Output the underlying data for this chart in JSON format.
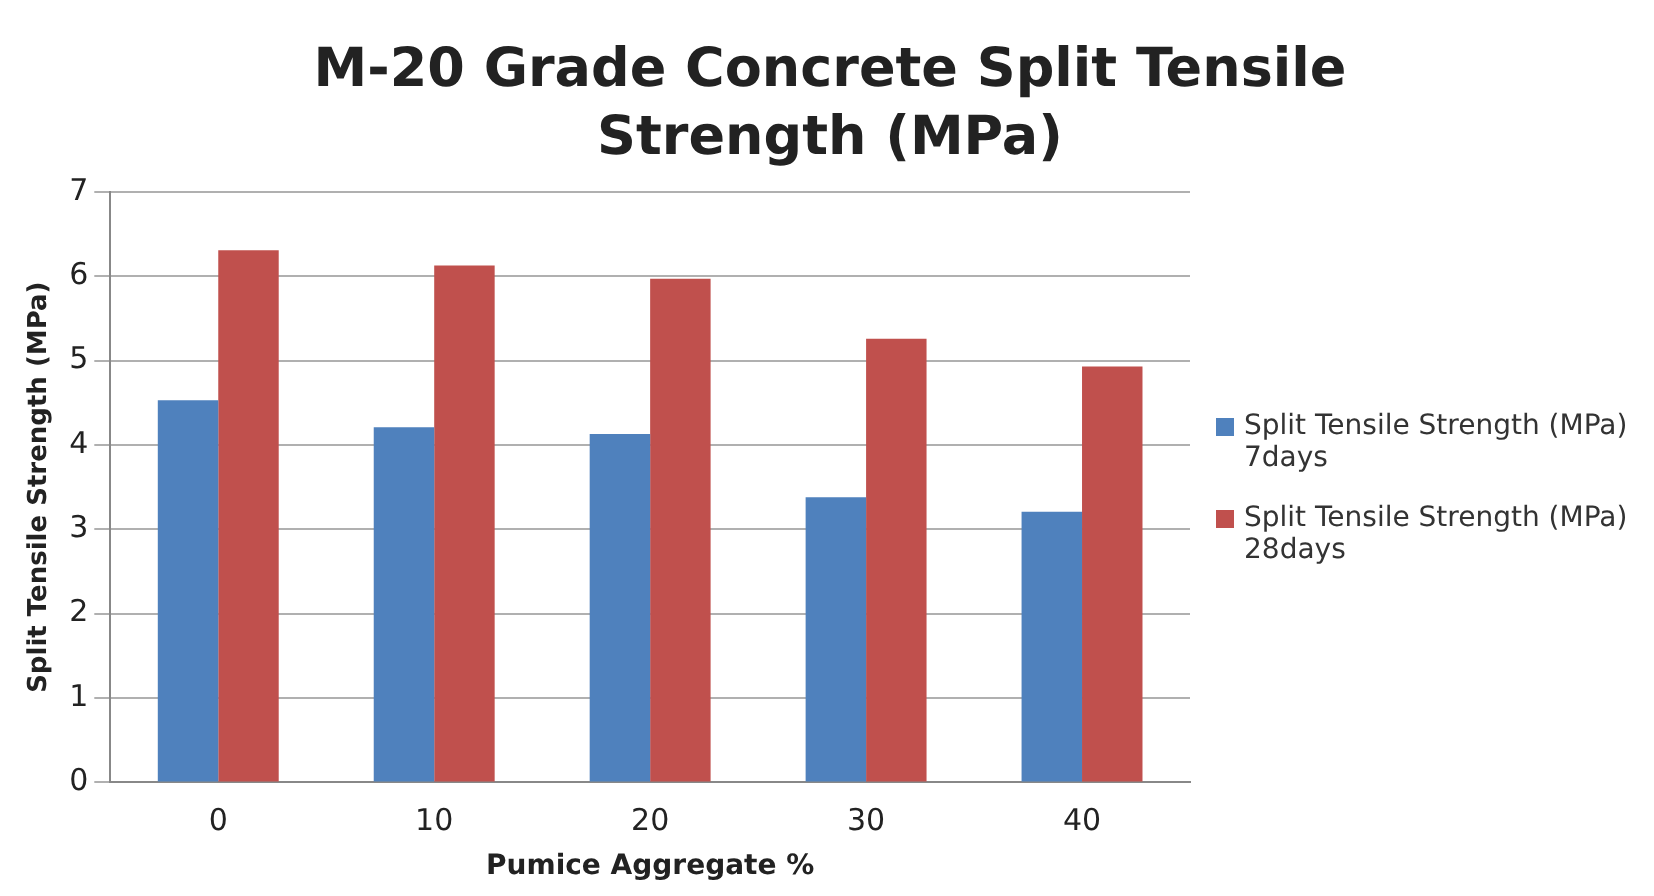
{
  "chart_data": {
    "type": "bar",
    "title": "M-20 Grade Concrete Split Tensile Strength (MPa)",
    "xlabel": "Pumice Aggregate %",
    "ylabel": "Split Tensile Strength (MPa)",
    "categories": [
      "0",
      "10",
      "20",
      "30",
      "40"
    ],
    "series": [
      {
        "name": "Split Tensile Strength (MPa) 7days",
        "color": "#4f81bd",
        "values": [
          4.53,
          4.21,
          4.13,
          3.38,
          3.21
        ]
      },
      {
        "name": "Split Tensile Strength (MPa) 28days",
        "color": "#c0504d",
        "values": [
          6.31,
          6.13,
          5.97,
          5.26,
          4.93
        ]
      }
    ],
    "ylim": [
      0,
      7
    ],
    "yticks": [
      0,
      1,
      2,
      3,
      4,
      5,
      6,
      7
    ],
    "grid": "y",
    "legend": "right"
  }
}
